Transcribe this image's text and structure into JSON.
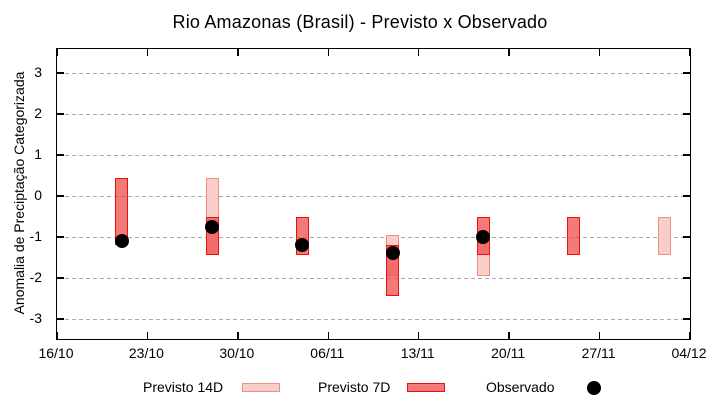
{
  "chart_data": {
    "type": "bar",
    "subtype": "range-bars-with-observed-points",
    "title": "Rio Amazonas (Brasil) - Previsto x Observado",
    "xlabel": "",
    "ylabel": "Anomalia de Preciptação Categorizada",
    "x_ticks": [
      {
        "day": 0,
        "label": "16/10"
      },
      {
        "day": 7,
        "label": "23/10"
      },
      {
        "day": 14,
        "label": "30/10"
      },
      {
        "day": 21,
        "label": "06/11"
      },
      {
        "day": 28,
        "label": "13/11"
      },
      {
        "day": 35,
        "label": "20/11"
      },
      {
        "day": 42,
        "label": "27/11"
      },
      {
        "day": 49,
        "label": "04/12"
      }
    ],
    "y_ticks": [
      3,
      2,
      1,
      0,
      -1,
      -2,
      -3
    ],
    "ylim": [
      -3.5,
      3.6
    ],
    "xlim_days": [
      0,
      49
    ],
    "grid": "horizontal-dashed",
    "legend_position": "bottom",
    "series": [
      {
        "name": "Previsto 14D",
        "style": "range-bar",
        "fill": "#f9cdc8",
        "stroke": "#ef8e84",
        "bars": [
          {
            "date": "28/10",
            "day": 12,
            "top": 0.45,
            "bottom": -1.45
          },
          {
            "date": "11/11",
            "day": 26,
            "top": -0.95,
            "bottom": -1.95
          },
          {
            "date": "18/11",
            "day": 33,
            "top": -0.95,
            "bottom": -1.95
          },
          {
            "date": "02/12",
            "day": 47,
            "top": -0.5,
            "bottom": -1.45
          }
        ]
      },
      {
        "name": "Previsto 7D",
        "style": "range-bar",
        "fill": "rgba(240,70,70,0.72)",
        "stroke": "#e81309",
        "bars": [
          {
            "date": "21/10",
            "day": 5,
            "top": 0.45,
            "bottom": -1.2
          },
          {
            "date": "28/10",
            "day": 12,
            "top": -0.5,
            "bottom": -1.45
          },
          {
            "date": "04/11",
            "day": 19,
            "top": -0.5,
            "bottom": -1.45
          },
          {
            "date": "11/11",
            "day": 26,
            "top": -1.2,
            "bottom": -2.45
          },
          {
            "date": "18/11",
            "day": 33,
            "top": -0.5,
            "bottom": -1.45
          },
          {
            "date": "25/11",
            "day": 40,
            "top": -0.5,
            "bottom": -1.45
          }
        ]
      },
      {
        "name": "Observado",
        "style": "scatter",
        "color": "#000000",
        "points": [
          {
            "date": "21/10",
            "day": 5,
            "value": -1.1
          },
          {
            "date": "28/10",
            "day": 12,
            "value": -0.75
          },
          {
            "date": "04/11",
            "day": 19,
            "value": -1.2
          },
          {
            "date": "11/11",
            "day": 26,
            "value": -1.4
          },
          {
            "date": "18/11",
            "day": 33,
            "value": -1.0
          }
        ]
      }
    ],
    "legend": [
      {
        "label": "Previsto 14D"
      },
      {
        "label": "Previsto 7D"
      },
      {
        "label": "Observado"
      }
    ],
    "colors": {
      "grid": "#a9a9a9",
      "axis": "#000000",
      "background": "#ffffff",
      "observed": "#000000"
    }
  }
}
